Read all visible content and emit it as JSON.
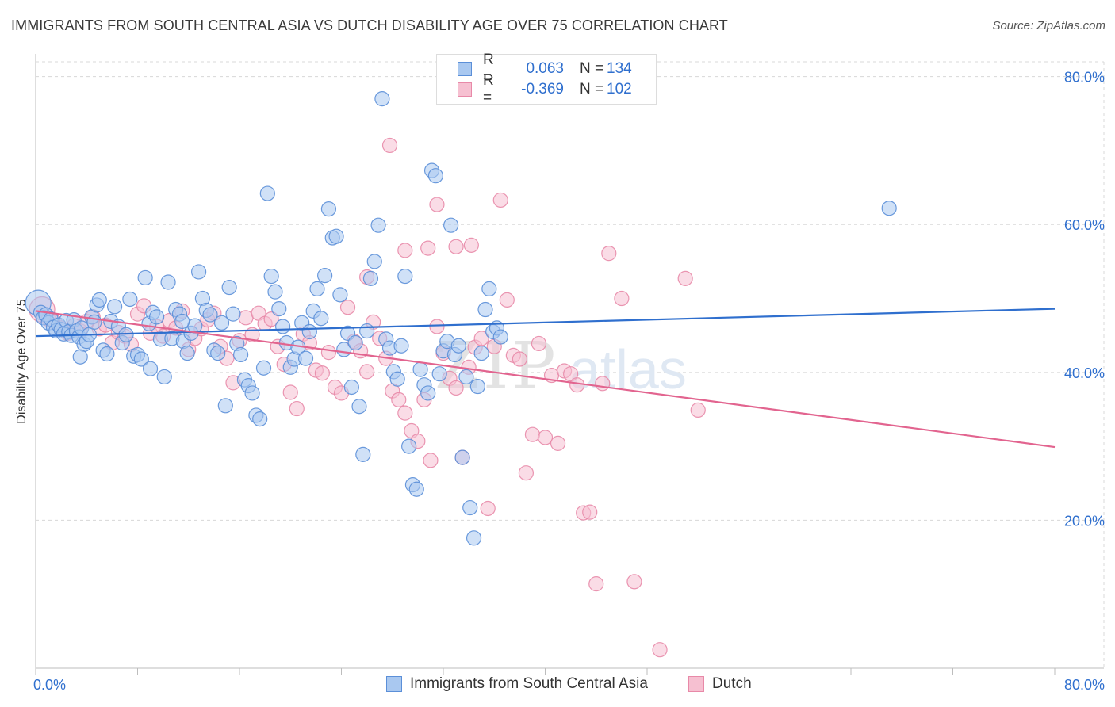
{
  "header": {
    "title": "IMMIGRANTS FROM SOUTH CENTRAL ASIA VS DUTCH DISABILITY AGE OVER 75 CORRELATION CHART",
    "source": "Source: ZipAtlas.com"
  },
  "watermark": {
    "zip": "ZIP",
    "atlas": "atlas"
  },
  "legend": {
    "series1": {
      "r_label": "R =",
      "r_value": "0.063",
      "n_label": "N =",
      "n_value": "134"
    },
    "series2": {
      "r_label": "R =",
      "r_value": "-0.369",
      "n_label": "N =",
      "n_value": "102"
    }
  },
  "colors": {
    "blue_fill": "#a9c8f0",
    "blue_stroke": "#5b8fd8",
    "blue_line": "#2f6fce",
    "pink_fill": "#f6c0d1",
    "pink_stroke": "#e889a8",
    "pink_line": "#e2648f",
    "value_text": "#2f6fce",
    "grid": "#d8d8d8"
  },
  "chart_data": {
    "type": "scatter",
    "title": "IMMIGRANTS FROM SOUTH CENTRAL ASIA VS DUTCH DISABILITY AGE OVER 75 CORRELATION CHART",
    "xlabel": "",
    "ylabel": "Disability Age Over 75",
    "xlim": [
      0,
      80
    ],
    "ylim": [
      0,
      82
    ],
    "x_tick_labels": [
      "0.0%",
      "80.0%"
    ],
    "y_tick_values": [
      20,
      40,
      60,
      80
    ],
    "y_tick_labels": [
      "20.0%",
      "40.0%",
      "60.0%",
      "80.0%"
    ],
    "series": [
      {
        "name": "Immigrants from South Central Asia",
        "R": 0.063,
        "N": 134,
        "trend": {
          "x": [
            0,
            80
          ],
          "y": [
            44.9,
            48.6
          ]
        },
        "points": [
          [
            0.2,
            49.4
          ],
          [
            0.4,
            48.1
          ],
          [
            0.6,
            47.4
          ],
          [
            0.8,
            47.8
          ],
          [
            1.0,
            46.7
          ],
          [
            1.2,
            47.2
          ],
          [
            1.4,
            46.1
          ],
          [
            1.6,
            45.6
          ],
          [
            1.8,
            46.4
          ],
          [
            2.0,
            45.8
          ],
          [
            2.2,
            45.2
          ],
          [
            2.4,
            47.0
          ],
          [
            2.6,
            45.5
          ],
          [
            2.8,
            45.0
          ],
          [
            3.0,
            47.1
          ],
          [
            3.2,
            45.6
          ],
          [
            3.4,
            44.8
          ],
          [
            3.6,
            46.0
          ],
          [
            3.8,
            43.8
          ],
          [
            4.0,
            44.2
          ],
          [
            4.2,
            45.1
          ],
          [
            4.4,
            47.5
          ],
          [
            4.6,
            46.8
          ],
          [
            4.8,
            49.1
          ],
          [
            5.0,
            49.8
          ],
          [
            5.3,
            43.0
          ],
          [
            5.6,
            42.5
          ],
          [
            5.9,
            46.9
          ],
          [
            6.2,
            48.9
          ],
          [
            6.5,
            46.2
          ],
          [
            6.8,
            44.0
          ],
          [
            7.1,
            45.1
          ],
          [
            7.4,
            49.9
          ],
          [
            7.7,
            42.2
          ],
          [
            8.0,
            42.4
          ],
          [
            8.3,
            41.8
          ],
          [
            8.6,
            52.8
          ],
          [
            8.9,
            46.6
          ],
          [
            9.2,
            48.1
          ],
          [
            9.5,
            47.5
          ],
          [
            9.8,
            44.5
          ],
          [
            10.1,
            39.4
          ],
          [
            10.4,
            52.2
          ],
          [
            10.7,
            44.6
          ],
          [
            11.0,
            48.5
          ],
          [
            11.3,
            47.9
          ],
          [
            11.6,
            44.2
          ],
          [
            11.9,
            42.6
          ],
          [
            12.2,
            45.3
          ],
          [
            12.5,
            46.3
          ],
          [
            12.8,
            53.6
          ],
          [
            13.1,
            50.0
          ],
          [
            13.4,
            48.4
          ],
          [
            13.7,
            47.8
          ],
          [
            14.0,
            43.0
          ],
          [
            14.3,
            42.6
          ],
          [
            14.6,
            46.7
          ],
          [
            14.9,
            35.5
          ],
          [
            15.2,
            51.5
          ],
          [
            15.5,
            47.9
          ],
          [
            15.8,
            43.9
          ],
          [
            16.1,
            42.4
          ],
          [
            16.4,
            39.0
          ],
          [
            16.7,
            38.2
          ],
          [
            17.0,
            37.2
          ],
          [
            17.3,
            34.2
          ],
          [
            17.6,
            33.7
          ],
          [
            17.9,
            40.6
          ],
          [
            18.2,
            64.2
          ],
          [
            18.5,
            53.0
          ],
          [
            18.8,
            50.9
          ],
          [
            19.1,
            48.6
          ],
          [
            19.4,
            46.2
          ],
          [
            19.7,
            44.0
          ],
          [
            20.0,
            40.7
          ],
          [
            20.3,
            41.8
          ],
          [
            20.6,
            43.4
          ],
          [
            20.9,
            46.7
          ],
          [
            21.2,
            41.9
          ],
          [
            21.5,
            45.5
          ],
          [
            21.8,
            48.3
          ],
          [
            22.1,
            51.3
          ],
          [
            22.4,
            47.3
          ],
          [
            22.7,
            53.1
          ],
          [
            23.0,
            62.1
          ],
          [
            23.3,
            58.2
          ],
          [
            23.6,
            58.4
          ],
          [
            23.9,
            50.5
          ],
          [
            24.2,
            43.1
          ],
          [
            24.5,
            45.3
          ],
          [
            24.8,
            38.0
          ],
          [
            25.1,
            44.0
          ],
          [
            25.4,
            35.4
          ],
          [
            25.7,
            28.9
          ],
          [
            26.0,
            45.6
          ],
          [
            26.3,
            52.7
          ],
          [
            26.6,
            55.0
          ],
          [
            26.9,
            59.9
          ],
          [
            27.2,
            77.0
          ],
          [
            27.5,
            44.5
          ],
          [
            27.8,
            43.3
          ],
          [
            28.1,
            40.1
          ],
          [
            28.4,
            39.1
          ],
          [
            28.7,
            43.6
          ],
          [
            29.0,
            53.0
          ],
          [
            29.3,
            30.0
          ],
          [
            29.6,
            24.8
          ],
          [
            29.9,
            24.2
          ],
          [
            30.2,
            40.4
          ],
          [
            30.5,
            38.3
          ],
          [
            30.8,
            37.2
          ],
          [
            31.1,
            67.3
          ],
          [
            31.4,
            66.6
          ],
          [
            31.7,
            39.8
          ],
          [
            32.0,
            42.9
          ],
          [
            32.3,
            44.2
          ],
          [
            32.6,
            59.9
          ],
          [
            32.9,
            42.4
          ],
          [
            33.2,
            43.6
          ],
          [
            33.5,
            28.5
          ],
          [
            33.8,
            39.4
          ],
          [
            34.1,
            21.7
          ],
          [
            34.4,
            17.6
          ],
          [
            34.7,
            38.1
          ],
          [
            35.0,
            42.6
          ],
          [
            35.3,
            48.5
          ],
          [
            35.6,
            51.3
          ],
          [
            35.9,
            45.5
          ],
          [
            36.2,
            46.0
          ],
          [
            36.5,
            44.8
          ],
          [
            67.0,
            62.2
          ],
          [
            11.5,
            46.9
          ],
          [
            3.5,
            42.1
          ],
          [
            9.0,
            40.5
          ]
        ]
      },
      {
        "name": "Dutch",
        "R": -0.369,
        "N": 102,
        "trend": {
          "x": [
            0,
            80
          ],
          "y": [
            48.3,
            29.9
          ]
        },
        "points": [
          [
            0.5,
            48.5
          ],
          [
            1.0,
            47.2
          ],
          [
            1.5,
            46.8
          ],
          [
            2.0,
            46.0
          ],
          [
            2.5,
            45.3
          ],
          [
            3.0,
            46.3
          ],
          [
            3.5,
            45.6
          ],
          [
            4.0,
            46.9
          ],
          [
            4.5,
            47.5
          ],
          [
            5.0,
            45.9
          ],
          [
            5.5,
            46.4
          ],
          [
            6.0,
            44.0
          ],
          [
            6.5,
            45.4
          ],
          [
            7.0,
            44.9
          ],
          [
            7.5,
            43.8
          ],
          [
            8.0,
            47.9
          ],
          [
            8.5,
            49.0
          ],
          [
            9.0,
            45.3
          ],
          [
            9.5,
            46.2
          ],
          [
            10.0,
            44.9
          ],
          [
            10.5,
            47.0
          ],
          [
            11.0,
            46.0
          ],
          [
            11.5,
            48.3
          ],
          [
            12.0,
            43.1
          ],
          [
            12.5,
            44.6
          ],
          [
            13.0,
            45.9
          ],
          [
            13.5,
            47.1
          ],
          [
            14.0,
            48.0
          ],
          [
            14.5,
            43.5
          ],
          [
            15.0,
            41.9
          ],
          [
            15.5,
            38.6
          ],
          [
            16.0,
            44.3
          ],
          [
            16.5,
            47.4
          ],
          [
            17.0,
            45.1
          ],
          [
            17.5,
            48.0
          ],
          [
            18.0,
            46.6
          ],
          [
            18.5,
            47.2
          ],
          [
            19.0,
            43.5
          ],
          [
            19.5,
            41.1
          ],
          [
            20.0,
            37.3
          ],
          [
            20.5,
            35.1
          ],
          [
            21.0,
            45.2
          ],
          [
            21.5,
            44.0
          ],
          [
            22.0,
            40.3
          ],
          [
            22.5,
            39.9
          ],
          [
            23.0,
            42.7
          ],
          [
            23.5,
            38.0
          ],
          [
            24.0,
            37.2
          ],
          [
            24.5,
            48.8
          ],
          [
            25.0,
            44.2
          ],
          [
            25.5,
            42.9
          ],
          [
            26.0,
            40.1
          ],
          [
            26.5,
            46.8
          ],
          [
            27.0,
            44.6
          ],
          [
            27.5,
            41.9
          ],
          [
            28.0,
            37.5
          ],
          [
            28.5,
            36.3
          ],
          [
            29.0,
            34.5
          ],
          [
            29.5,
            32.1
          ],
          [
            30.0,
            30.7
          ],
          [
            30.5,
            36.3
          ],
          [
            31.0,
            28.1
          ],
          [
            31.5,
            46.2
          ],
          [
            32.0,
            42.6
          ],
          [
            32.5,
            39.2
          ],
          [
            33.0,
            37.9
          ],
          [
            33.5,
            28.5
          ],
          [
            34.0,
            40.7
          ],
          [
            34.5,
            43.4
          ],
          [
            35.0,
            44.6
          ],
          [
            35.5,
            21.6
          ],
          [
            36.0,
            43.5
          ],
          [
            36.5,
            63.3
          ],
          [
            37.0,
            49.8
          ],
          [
            37.5,
            42.3
          ],
          [
            38.0,
            41.8
          ],
          [
            38.5,
            26.4
          ],
          [
            39.0,
            31.6
          ],
          [
            39.5,
            43.9
          ],
          [
            40.0,
            31.2
          ],
          [
            40.5,
            39.6
          ],
          [
            41.0,
            30.4
          ],
          [
            41.5,
            40.2
          ],
          [
            42.0,
            39.8
          ],
          [
            42.5,
            38.3
          ],
          [
            43.0,
            21.0
          ],
          [
            43.5,
            21.1
          ],
          [
            44.0,
            11.4
          ],
          [
            44.5,
            38.5
          ],
          [
            45.0,
            56.1
          ],
          [
            46.0,
            50.0
          ],
          [
            47.0,
            11.7
          ],
          [
            49.0,
            2.5
          ],
          [
            51.0,
            52.7
          ],
          [
            52.0,
            34.9
          ],
          [
            27.8,
            70.7
          ],
          [
            29.0,
            56.5
          ],
          [
            31.5,
            62.7
          ],
          [
            33.0,
            57.0
          ],
          [
            34.2,
            57.2
          ],
          [
            30.8,
            56.8
          ],
          [
            26.0,
            52.9
          ]
        ]
      }
    ]
  },
  "bottom_legend": {
    "series1_label": "Immigrants from South Central Asia",
    "series2_label": "Dutch"
  }
}
